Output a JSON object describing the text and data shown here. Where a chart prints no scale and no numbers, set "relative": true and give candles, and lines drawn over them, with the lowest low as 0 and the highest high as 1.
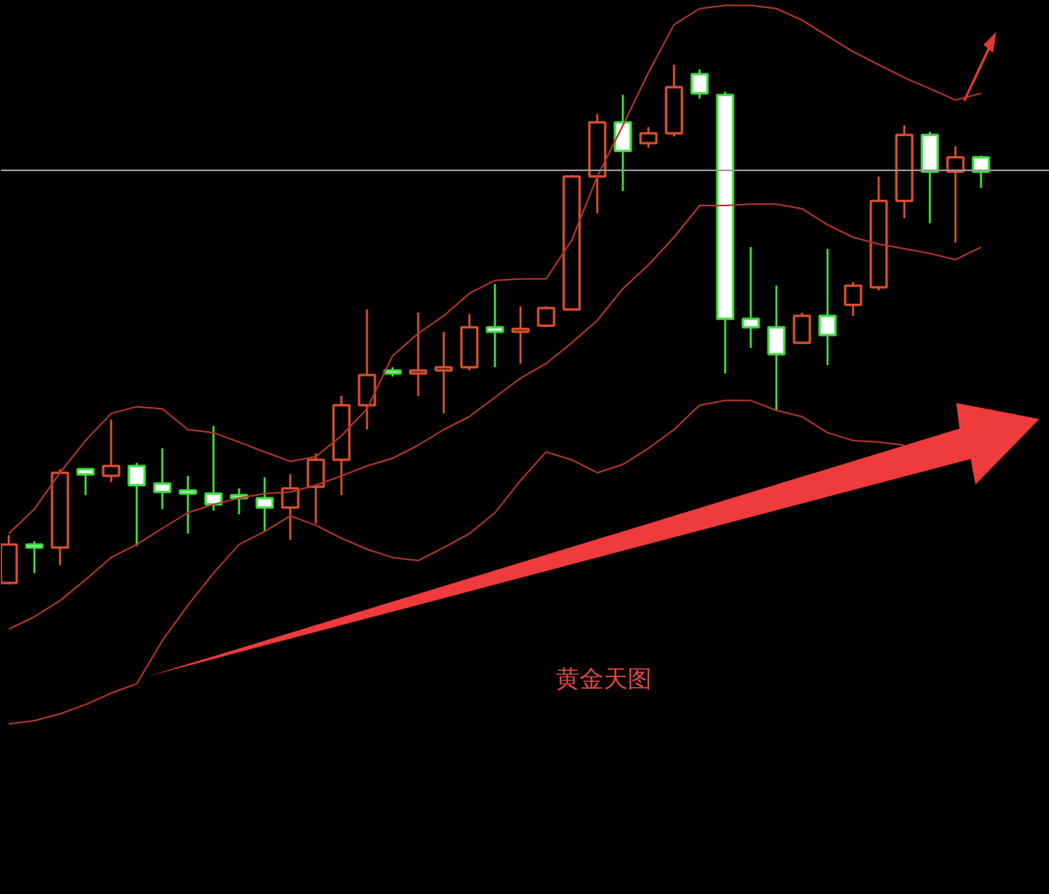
{
  "chart_data": {
    "type": "candlestick",
    "relative": true,
    "categories": [
      null,
      null,
      null,
      null,
      null,
      null,
      null,
      null,
      null,
      null,
      null,
      null,
      null,
      null,
      null,
      null,
      null,
      null,
      null,
      null,
      null,
      null,
      null,
      null,
      null,
      null,
      null,
      null,
      null,
      null,
      null,
      null,
      null,
      null,
      null,
      null,
      null,
      null,
      null
    ],
    "ohlc": [
      [
        0.003,
        0.095,
        0,
        0.077
      ],
      [
        0.074,
        0.083,
        0.022,
        0.071
      ],
      [
        0.071,
        0.222,
        0.037,
        0.215
      ],
      [
        0.222,
        0.222,
        0.172,
        0.212
      ],
      [
        0.209,
        0.317,
        0.197,
        0.228
      ],
      [
        0.228,
        0.234,
        0.074,
        0.191
      ],
      [
        0.194,
        0.262,
        0.145,
        0.178
      ],
      [
        0.178,
        0.209,
        0.098,
        0.175
      ],
      [
        0.175,
        0.305,
        0.142,
        0.154
      ],
      [
        0.172,
        0.185,
        0.135,
        0.166
      ],
      [
        0.166,
        0.206,
        0.102,
        0.148
      ],
      [
        0.148,
        0.212,
        0.086,
        0.185
      ],
      [
        0.188,
        0.252,
        0.117,
        0.24
      ],
      [
        0.24,
        0.363,
        0.172,
        0.345
      ],
      [
        0.345,
        0.529,
        0.298,
        0.403
      ],
      [
        0.409,
        0.418,
        0.4,
        0.406
      ],
      [
        0.406,
        0.523,
        0.363,
        0.412
      ],
      [
        0.412,
        0.486,
        0.329,
        0.418
      ],
      [
        0.418,
        0.52,
        0.412,
        0.495
      ],
      [
        0.495,
        0.578,
        0.418,
        0.486
      ],
      [
        0.486,
        0.535,
        0.425,
        0.492
      ],
      [
        0.498,
        0.535,
        0.495,
        0.532
      ],
      [
        0.529,
        0.788,
        0.529,
        0.785
      ],
      [
        0.785,
        0.905,
        0.714,
        0.889
      ],
      [
        0.889,
        0.942,
        0.757,
        0.834
      ],
      [
        0.849,
        0.88,
        0.84,
        0.868
      ],
      [
        0.868,
        1,
        0.862,
        0.957
      ],
      [
        0.982,
        0.991,
        0.935,
        0.945
      ],
      [
        0.942,
        0.948,
        0.406,
        0.511
      ],
      [
        0.511,
        0.649,
        0.455,
        0.495
      ],
      [
        0.495,
        0.575,
        0.335,
        0.443
      ],
      [
        0.465,
        0.523,
        0.465,
        0.517
      ],
      [
        0.517,
        0.646,
        0.422,
        0.48
      ],
      [
        0.538,
        0.582,
        0.517,
        0.575
      ],
      [
        0.572,
        0.785,
        0.566,
        0.738
      ],
      [
        0.738,
        0.883,
        0.705,
        0.865
      ],
      [
        0.865,
        0.871,
        0.695,
        0.794
      ],
      [
        0.794,
        0.843,
        0.658,
        0.822
      ],
      [
        0.822,
        0.825,
        0.763,
        0.794
      ]
    ],
    "colors": [
      "#d9502e",
      "#3fdc3f",
      "#d9502e",
      "#3fdc3f",
      "#d9502e",
      "#3fdc3f",
      "#3fdc3f",
      "#3fdc3f",
      "#3fdc3f",
      "#3fdc3f",
      "#3fdc3f",
      "#d9502e",
      "#d9502e",
      "#d9502e",
      "#d9502e",
      "#3fdc3f",
      "#d9502e",
      "#d9502e",
      "#d9502e",
      "#3fdc3f",
      "#d9502e",
      "#d9502e",
      "#d9502e",
      "#d9502e",
      "#3fdc3f",
      "#d9502e",
      "#d9502e",
      "#3fdc3f",
      "#3fdc3f",
      "#3fdc3f",
      "#3fdc3f",
      "#d9502e",
      "#3fdc3f",
      "#d9502e",
      "#d9502e",
      "#d9502e",
      "#3fdc3f",
      "#d9502e",
      "#3fdc3f"
    ],
    "series": [
      {
        "type": "line",
        "color": "#b0362c",
        "values": [
          0.098,
          0.145,
          0.215,
          0.277,
          0.329,
          0.342,
          0.338,
          0.298,
          0.292,
          0.274,
          0.255,
          0.237,
          0.246,
          0.286,
          0.338,
          0.44,
          0.483,
          0.517,
          0.56,
          0.585,
          0.588,
          0.588,
          0.662,
          0.785,
          0.883,
          0.985,
          1.077,
          1.108,
          1.114,
          1.114,
          1.108,
          1.086,
          1.055,
          1.025,
          1,
          0.975,
          0.954,
          0.932,
          0.945
        ]
      },
      {
        "type": "line",
        "color": "#b0362c",
        "values": [
          -0.086,
          -0.062,
          -0.031,
          0.009,
          0.052,
          0.077,
          0.108,
          0.138,
          0.154,
          0.166,
          0.175,
          0.178,
          0.191,
          0.209,
          0.228,
          0.243,
          0.268,
          0.298,
          0.323,
          0.36,
          0.397,
          0.425,
          0.465,
          0.508,
          0.569,
          0.615,
          0.668,
          0.729,
          0.729,
          0.732,
          0.732,
          0.723,
          0.692,
          0.668,
          0.655,
          0.646,
          0.637,
          0.625,
          0.649
        ]
      },
      {
        "type": "line",
        "color": "#b0362c",
        "values": [
          -0.268,
          -0.262,
          -0.249,
          -0.231,
          -0.209,
          -0.191,
          -0.108,
          -0.04,
          0.022,
          0.077,
          0.102,
          0.132,
          0.114,
          0.089,
          0.068,
          0.052,
          0.046,
          0.071,
          0.098,
          0.138,
          0.2,
          0.255,
          0.24,
          0.215,
          0.231,
          0.262,
          0.298,
          0.345,
          0.354,
          0.354,
          0.335,
          0.323,
          0.292,
          0.277,
          0.274,
          0.268,
          null,
          null,
          null
        ]
      }
    ],
    "ref_lines": [
      {
        "axis": "y",
        "value": 0.797,
        "color": "#9a9a9a"
      }
    ],
    "annotations": [
      "黄金天图"
    ]
  }
}
